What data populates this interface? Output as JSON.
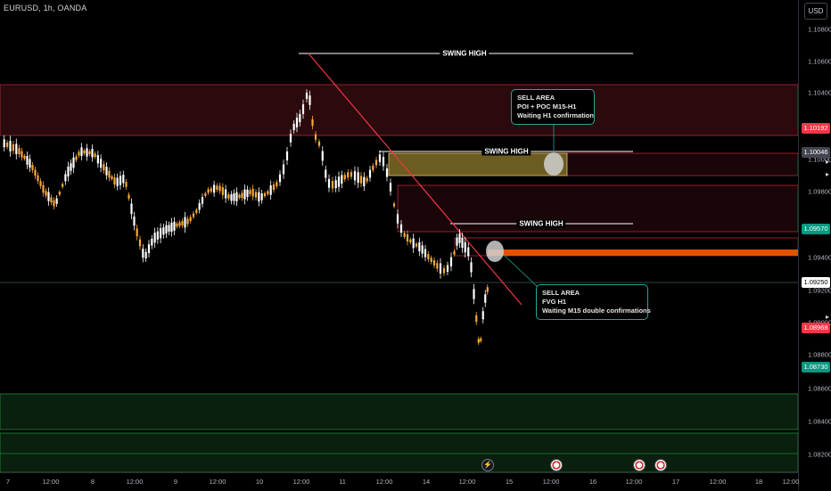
{
  "symbol_header": "EURUSD, 1h, OANDA",
  "currency_button": "USD",
  "price_ticks": [
    "1.10800",
    "1.10600",
    "1.10400",
    "1.10000",
    "1.09800",
    "1.09400",
    "1.09200",
    "1.09000",
    "1.08800",
    "1.08600",
    "1.08400",
    "1.08200"
  ],
  "price_tags": [
    {
      "value": "1.10192",
      "color": "#f23645"
    },
    {
      "value": "1.10046",
      "color": "#434651"
    },
    {
      "value": "1.09570",
      "color": "#089981"
    },
    {
      "value": "1.09250",
      "color": "#ffffff",
      "text_color": "#000000"
    },
    {
      "value": "1.08968",
      "color": "#f23645"
    },
    {
      "value": "1.08730",
      "color": "#089981"
    }
  ],
  "time_ticks": [
    "7",
    "12:00",
    "8",
    "12:00",
    "9",
    "12:00",
    "10",
    "12:00",
    "11",
    "12:00",
    "14",
    "12:00",
    "15",
    "12:00",
    "16",
    "12:00",
    "17",
    "12:00",
    "18",
    "12:00"
  ],
  "labels": {
    "swing_high_1": "SWING HIGH",
    "swing_high_2": "SWING HIGH",
    "swing_high_3": "SWING HIGH"
  },
  "callouts": {
    "top": [
      "SELL AREA",
      "POI + POC M15-H1",
      "Waiting H1 confirmation"
    ],
    "bottom": [
      "SELL AREA",
      "FVG H1",
      "Waiting M15 double confirmations"
    ]
  },
  "colors": {
    "bullish": "#ffffff",
    "bearish": "#f7a93b",
    "supply_zone": "#f23645",
    "demand_zone": "#089981",
    "trendline": "#f23645",
    "callout_border": "#26a69a"
  },
  "events": [
    "flash-icon",
    "flag-icon",
    "flag-icon",
    "flag-icon"
  ]
}
